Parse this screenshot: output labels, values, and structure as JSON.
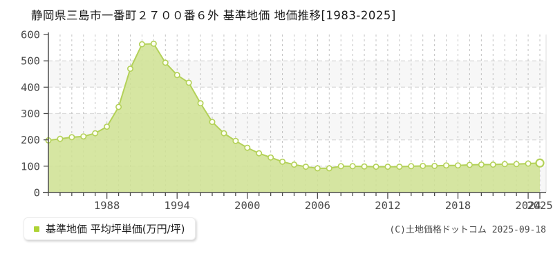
{
  "copyright": "(C)土地価格ドットコム 2025-09-18",
  "legend": {
    "marker_color": "#aed335"
  },
  "chart_data": {
    "type": "area",
    "title": "静岡県三島市一番町２７００番６外 基準地価 地価推移[1983-2025]",
    "x": [
      1983,
      1984,
      1985,
      1986,
      1987,
      1988,
      1989,
      1990,
      1991,
      1992,
      1993,
      1994,
      1995,
      1996,
      1997,
      1998,
      1999,
      2000,
      2001,
      2002,
      2003,
      2004,
      2005,
      2006,
      2007,
      2008,
      2009,
      2010,
      2011,
      2012,
      2013,
      2014,
      2015,
      2016,
      2017,
      2018,
      2019,
      2020,
      2021,
      2022,
      2023,
      2024,
      2025
    ],
    "series": [
      {
        "name": "基準地価 平均坪単価(万円/坪)",
        "values": [
          198,
          204,
          210,
          213,
          225,
          250,
          325,
          470,
          563,
          565,
          493,
          446,
          417,
          339,
          268,
          225,
          196,
          170,
          149,
          133,
          117,
          106,
          98,
          92,
          92,
          100,
          100,
          99,
          98,
          98,
          98,
          100,
          101,
          101,
          103,
          103,
          105,
          106,
          106,
          108,
          108,
          110,
          112
        ]
      }
    ],
    "xlabel": "",
    "ylabel": "万円/坪",
    "ylim": [
      0,
      600
    ],
    "ytick_step": 100,
    "xtick_labeled": [
      1988,
      1994,
      2000,
      2006,
      2012,
      2018,
      2024,
      2025
    ],
    "grid": true,
    "legend_position": "bottom-left",
    "highlight_last_point": true,
    "colors": {
      "area_fill": "#cfe292",
      "line": "#b3d158",
      "dot_fill": "#fefff2",
      "dot_stroke": "#b3d158",
      "axis": "#4d4d4d",
      "grid_vertical": "#c2c2c2",
      "grid_horizontal": "#dcdcdc",
      "band_alt": "#f7f7f7",
      "tick_label": "#4a4a4a",
      "plot_border": "#dddddd"
    }
  }
}
